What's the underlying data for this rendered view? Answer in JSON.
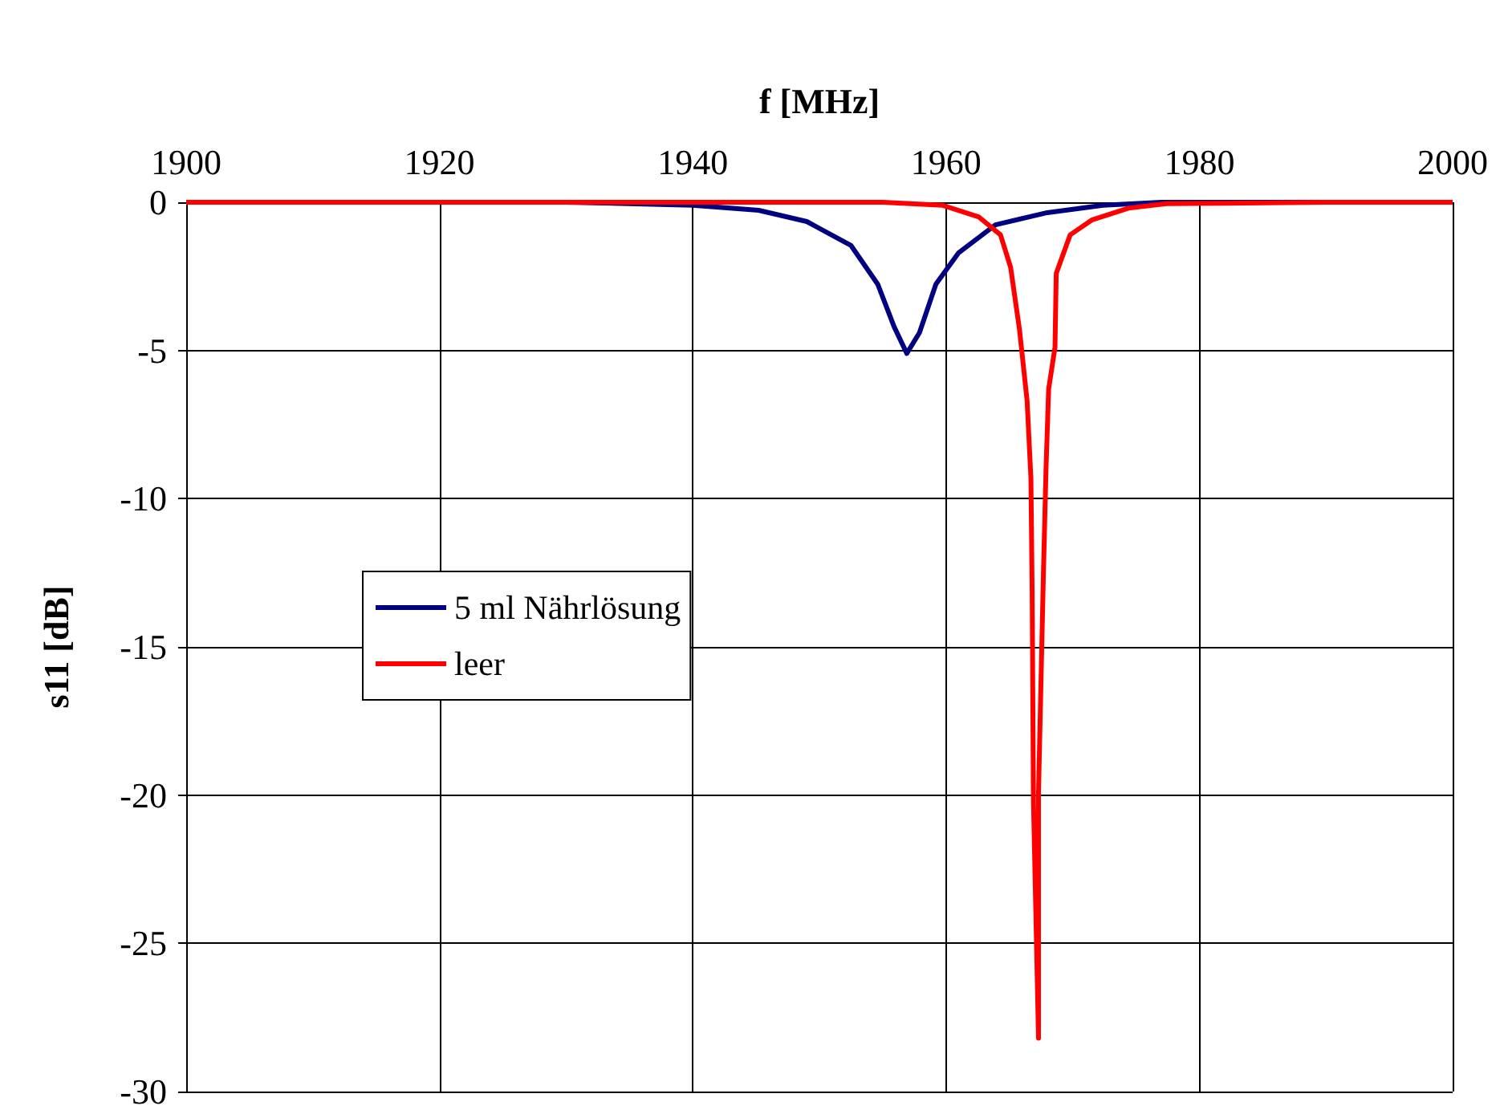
{
  "chart_data": {
    "type": "line",
    "xlabel": "f [MHz]",
    "ylabel": "s11 [dB]",
    "xlim": [
      1900,
      2000
    ],
    "xticks": [
      1900,
      1920,
      1940,
      1960,
      1980,
      2000
    ],
    "ylim": [
      -30,
      0
    ],
    "yticks": [
      -30,
      -25,
      -20,
      -15,
      -10,
      -5,
      0
    ],
    "grid": true,
    "legend": "left",
    "marker": "none",
    "line_style": "solid",
    "series": [
      {
        "name": "5 ml Nährlösung",
        "color": "#000080",
        "x": [
          1900,
          1930,
          1940,
          1945.2,
          1949,
          1952.5,
          1954.6,
          1955.9,
          1956.9,
          1957.9,
          1959.2,
          1961,
          1963.9,
          1968,
          1972.4,
          1977,
          1990,
          2000
        ],
        "values": [
          0,
          0,
          -0.1,
          -0.27,
          -0.65,
          -1.46,
          -2.76,
          -4.2,
          -5.1,
          -4.4,
          -2.76,
          -1.7,
          -0.76,
          -0.35,
          -0.1,
          0,
          0,
          0
        ]
      },
      {
        "name": "leer",
        "color": "#ff0000",
        "x": [
          1900,
          1955,
          1959.7,
          1962.6,
          1964.3,
          1965.1,
          1965.8,
          1966.4,
          1966.7,
          1966.8,
          1966.9,
          1967.3,
          1967.3,
          1967.7,
          1967.9,
          1968.1,
          1968.6,
          1968.7,
          1969.8,
          1971.5,
          1974.4,
          1977.4,
          1990,
          2000
        ],
        "values": [
          0,
          0,
          -0.1,
          -0.5,
          -1.1,
          -2.2,
          -4.3,
          -6.7,
          -9.3,
          -13.2,
          -20.2,
          -28.2,
          -19.9,
          -12.3,
          -8.9,
          -6.3,
          -4.9,
          -2.4,
          -1.1,
          -0.6,
          -0.2,
          -0.05,
          0,
          0
        ]
      }
    ]
  }
}
